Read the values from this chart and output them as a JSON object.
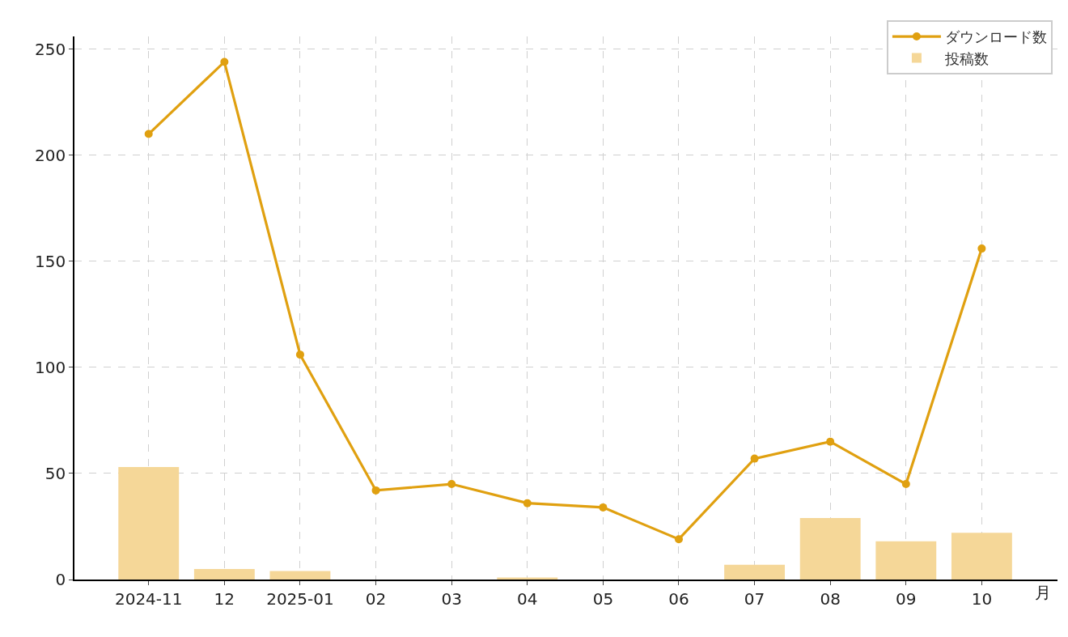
{
  "chart_data": {
    "type": "bar",
    "xlabel": "月",
    "categories": [
      "2024-11",
      "12",
      "2025-01",
      "02",
      "03",
      "04",
      "05",
      "06",
      "07",
      "08",
      "09",
      "10"
    ],
    "series": [
      {
        "name": "ダウンロード数",
        "type": "line",
        "color": "#e0a010",
        "values": [
          210,
          244,
          106,
          42,
          45,
          36,
          34,
          19,
          57,
          65,
          45,
          156
        ]
      },
      {
        "name": "投稿数",
        "color": "#f5d798",
        "values": [
          53,
          5,
          4,
          0,
          0,
          1,
          0,
          0,
          7,
          29,
          18,
          22
        ]
      }
    ],
    "ylim": [
      0,
      256
    ],
    "yticks": [
      0,
      50,
      100,
      150,
      200,
      250
    ],
    "grid": true,
    "legend": "top right",
    "marker": "circle",
    "line_style": "solid"
  }
}
